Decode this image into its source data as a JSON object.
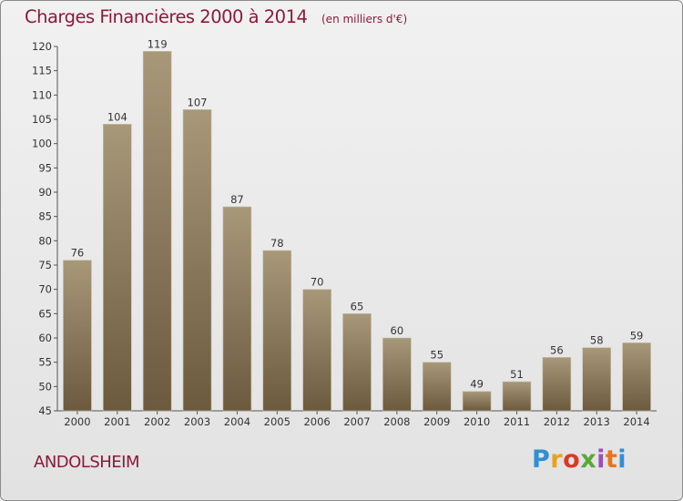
{
  "header": {
    "title": "Charges Financières 2000 à 2014",
    "subtitle": "(en milliers d'€)"
  },
  "footer": {
    "commune": "ANDOLSHEIM",
    "logo": [
      "P",
      "r",
      "o",
      "x",
      "i",
      "t",
      "i"
    ]
  },
  "colors": {
    "title": "#8b1a3c",
    "bar_top": "#a8987a",
    "bar_bottom": "#6b5a3e"
  },
  "chart_data": {
    "type": "bar",
    "title": "Charges Financières 2000 à 2014",
    "subtitle": "(en milliers d'€)",
    "categories": [
      "2000",
      "2001",
      "2002",
      "2003",
      "2004",
      "2005",
      "2006",
      "2007",
      "2008",
      "2009",
      "2010",
      "2011",
      "2012",
      "2013",
      "2014"
    ],
    "values": [
      76,
      104,
      119,
      107,
      87,
      78,
      70,
      65,
      60,
      55,
      49,
      51,
      56,
      58,
      59
    ],
    "xlabel": "",
    "ylabel": "",
    "ylim": [
      45,
      120
    ],
    "yticks": [
      45,
      50,
      55,
      60,
      65,
      70,
      75,
      80,
      85,
      90,
      95,
      100,
      105,
      110,
      115,
      120
    ],
    "grid": false,
    "data_labels": true
  }
}
